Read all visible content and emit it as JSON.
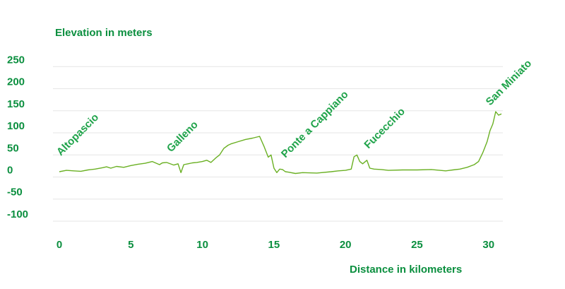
{
  "colors": {
    "text": "#0b8f3f",
    "line": "#6ab023",
    "grid": "#e6e6e6"
  },
  "chart_data": {
    "type": "line",
    "title": "",
    "ylabel": "Elevation in meters",
    "xlabel": "Distance in kilometers",
    "xlim": [
      0,
      31
    ],
    "ylim": [
      -100,
      250
    ],
    "grid": true,
    "legend": "none",
    "y_ticks": [
      250,
      200,
      150,
      100,
      50,
      0,
      -50,
      -100
    ],
    "x_ticks": [
      0,
      5,
      10,
      15,
      20,
      25,
      30
    ],
    "series": [
      {
        "x": [
          0,
          0.5,
          1,
          1.5,
          2,
          2.5,
          3,
          3.3,
          3.6,
          4,
          4.5,
          5,
          5.5,
          6,
          6.5,
          7,
          7.2,
          7.5,
          8,
          8.3,
          8.5,
          8.7,
          9,
          9.3,
          9.6,
          10,
          10.3,
          10.6,
          11,
          11.2,
          11.5,
          11.8,
          12,
          12.5,
          13,
          13.5,
          14,
          14.3,
          14.6,
          14.8,
          15,
          15.2,
          15.4,
          15.6,
          15.8,
          16,
          16.5,
          17,
          18,
          19,
          19.5,
          20,
          20.4,
          20.6,
          20.8,
          21,
          21.2,
          21.5,
          21.7,
          22,
          22.5,
          23,
          24,
          25,
          26,
          27,
          27.5,
          28,
          28.5,
          29,
          29.3,
          29.6,
          29.9,
          30.1,
          30.3,
          30.5,
          30.7,
          30.9
        ],
        "y": [
          12,
          15,
          14,
          13,
          16,
          18,
          21,
          23,
          20,
          24,
          22,
          26,
          29,
          31,
          35,
          28,
          32,
          33,
          27,
          30,
          10,
          28,
          30,
          32,
          33,
          35,
          38,
          33,
          45,
          50,
          65,
          72,
          75,
          80,
          85,
          88,
          92,
          70,
          45,
          50,
          20,
          10,
          18,
          17,
          12,
          11,
          8,
          10,
          9,
          12,
          14,
          15,
          18,
          46,
          50,
          35,
          30,
          38,
          20,
          18,
          17,
          15,
          16,
          16,
          17,
          14,
          16,
          18,
          22,
          28,
          35,
          55,
          80,
          105,
          120,
          148,
          140,
          143
        ]
      }
    ],
    "annotations": [
      {
        "text": "Altopascio",
        "x": 0.5
      },
      {
        "text": "Galleno",
        "x": 8.2
      },
      {
        "text": "Ponte a Cappiano",
        "x": 16.2
      },
      {
        "text": "Fucecchio",
        "x": 22
      },
      {
        "text": "San Miniato",
        "x": 30.5
      }
    ]
  }
}
